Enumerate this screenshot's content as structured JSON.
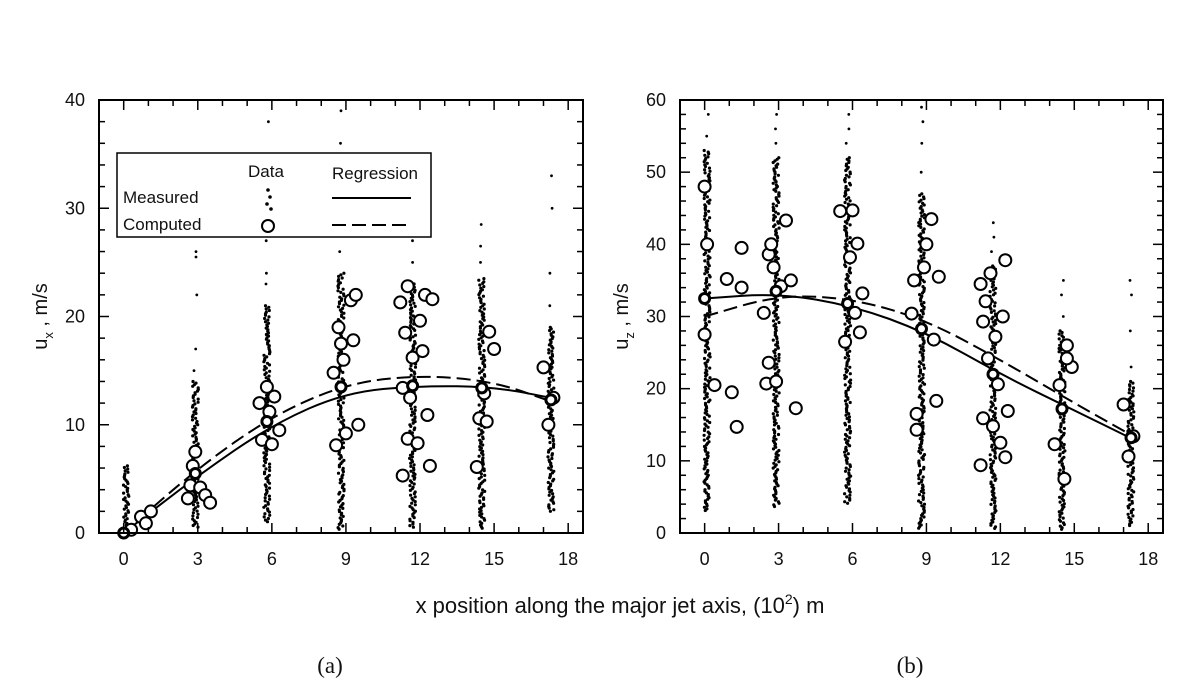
{
  "figure": {
    "xlabel_main": "x position along the major jet axis, (10",
    "xlabel_sup": "2",
    "xlabel_tail": ") m"
  },
  "chart_data": [
    {
      "type": "scatter",
      "panel_label": "(a)",
      "ylabel_main": "u",
      "ylabel_sub": "x",
      "ylabel_unit": " , m/s",
      "xlim": [
        -1,
        18.6
      ],
      "ylim": [
        0,
        40
      ],
      "xticks": [
        0,
        3,
        6,
        9,
        12,
        15,
        18
      ],
      "yticks": [
        0,
        10,
        20,
        30,
        40
      ],
      "legend": {
        "position": "top-left",
        "col_data": "Data",
        "col_regression": "Regression",
        "row_measured": "Measured",
        "row_computed": "Computed"
      },
      "measured_spread": [
        {
          "x": 0.1,
          "lo": 0,
          "hi": 6.2,
          "outliers": []
        },
        {
          "x": 2.9,
          "lo": 0.5,
          "hi": 14,
          "outliers": [
            15,
            17,
            22,
            25.5,
            26
          ]
        },
        {
          "x": 5.8,
          "lo": 1,
          "hi": 21,
          "outliers": [
            23,
            24,
            27,
            30,
            35,
            38
          ]
        },
        {
          "x": 8.8,
          "lo": 0.3,
          "hi": 24,
          "outliers": [
            26,
            29,
            33,
            36,
            39
          ]
        },
        {
          "x": 11.7,
          "lo": 0.5,
          "hi": 23,
          "outliers": [
            25,
            27,
            30,
            33,
            35
          ]
        },
        {
          "x": 14.5,
          "lo": 0.3,
          "hi": 23.5,
          "outliers": [
            25,
            26.5,
            28.5
          ]
        },
        {
          "x": 17.3,
          "lo": 2,
          "hi": 19,
          "outliers": [
            21,
            24,
            30,
            33
          ]
        }
      ],
      "computed_data": [
        {
          "x": 0.3,
          "y": 0.3
        },
        {
          "x": 0.7,
          "y": 1.5
        },
        {
          "x": 0.9,
          "y": 0.9
        },
        {
          "x": 1.1,
          "y": 2.0
        },
        {
          "x": 2.6,
          "y": 3.2
        },
        {
          "x": 2.7,
          "y": 4.4
        },
        {
          "x": 2.8,
          "y": 6.2
        },
        {
          "x": 2.9,
          "y": 7.5
        },
        {
          "x": 3.1,
          "y": 4.2
        },
        {
          "x": 3.3,
          "y": 3.5
        },
        {
          "x": 3.5,
          "y": 2.8
        },
        {
          "x": 5.5,
          "y": 12.0
        },
        {
          "x": 5.6,
          "y": 8.6
        },
        {
          "x": 5.8,
          "y": 13.5
        },
        {
          "x": 5.9,
          "y": 11.2
        },
        {
          "x": 6.0,
          "y": 8.2
        },
        {
          "x": 6.1,
          "y": 12.6
        },
        {
          "x": 6.3,
          "y": 9.5
        },
        {
          "x": 8.5,
          "y": 14.8
        },
        {
          "x": 8.6,
          "y": 8.1
        },
        {
          "x": 8.7,
          "y": 19.0
        },
        {
          "x": 8.8,
          "y": 17.5
        },
        {
          "x": 8.9,
          "y": 16.0
        },
        {
          "x": 9.0,
          "y": 9.2
        },
        {
          "x": 9.2,
          "y": 21.5
        },
        {
          "x": 9.4,
          "y": 22.0
        },
        {
          "x": 9.5,
          "y": 10.0
        },
        {
          "x": 9.3,
          "y": 17.8
        },
        {
          "x": 11.2,
          "y": 21.3
        },
        {
          "x": 11.3,
          "y": 5.3
        },
        {
          "x": 11.4,
          "y": 18.5
        },
        {
          "x": 11.5,
          "y": 22.8
        },
        {
          "x": 11.5,
          "y": 8.7
        },
        {
          "x": 11.6,
          "y": 12.5
        },
        {
          "x": 11.7,
          "y": 16.2
        },
        {
          "x": 11.9,
          "y": 8.3
        },
        {
          "x": 12.0,
          "y": 19.6
        },
        {
          "x": 12.1,
          "y": 16.8
        },
        {
          "x": 12.2,
          "y": 22.0
        },
        {
          "x": 12.3,
          "y": 10.9
        },
        {
          "x": 12.4,
          "y": 6.2
        },
        {
          "x": 12.5,
          "y": 21.6
        },
        {
          "x": 11.3,
          "y": 13.4
        },
        {
          "x": 14.3,
          "y": 6.1
        },
        {
          "x": 14.4,
          "y": 10.6
        },
        {
          "x": 14.6,
          "y": 12.9
        },
        {
          "x": 14.8,
          "y": 18.6
        },
        {
          "x": 15.0,
          "y": 17.0
        },
        {
          "x": 14.7,
          "y": 10.3
        },
        {
          "x": 17.0,
          "y": 15.3
        },
        {
          "x": 17.2,
          "y": 10.0
        },
        {
          "x": 17.4,
          "y": 12.5
        }
      ],
      "regression_points": [
        {
          "x": 0,
          "y": 0
        },
        {
          "x": 2.9,
          "y": 5.5
        },
        {
          "x": 5.8,
          "y": 10.3
        },
        {
          "x": 8.8,
          "y": 13.5
        },
        {
          "x": 11.7,
          "y": 13.6
        },
        {
          "x": 14.5,
          "y": 13.4
        },
        {
          "x": 17.3,
          "y": 12.3
        }
      ],
      "series": [
        {
          "name": "Measured",
          "style": "solid",
          "x": [
            0,
            3,
            6,
            9,
            12,
            15,
            17.5
          ],
          "y": [
            0,
            5.3,
            10.0,
            13.0,
            13.6,
            13.5,
            12.4
          ]
        },
        {
          "name": "Computed",
          "style": "dashed",
          "x": [
            0,
            3,
            6,
            9,
            12,
            15,
            17.5
          ],
          "y": [
            0,
            6.0,
            10.8,
            13.8,
            14.6,
            14.0,
            12.0
          ]
        }
      ]
    },
    {
      "type": "scatter",
      "panel_label": "(b)",
      "ylabel_main": "u",
      "ylabel_sub": "z",
      "ylabel_unit": " , m/s",
      "xlim": [
        -1,
        18.6
      ],
      "ylim": [
        0,
        60
      ],
      "xticks": [
        0,
        3,
        6,
        9,
        12,
        15,
        18
      ],
      "yticks": [
        0,
        10,
        20,
        30,
        40,
        50,
        60
      ],
      "measured_spread": [
        {
          "x": 0.1,
          "lo": 3,
          "hi": 53,
          "outliers": [
            55,
            58
          ]
        },
        {
          "x": 2.9,
          "lo": 3.5,
          "hi": 52,
          "outliers": [
            54,
            56,
            58
          ]
        },
        {
          "x": 5.8,
          "lo": 4,
          "hi": 52,
          "outliers": [
            54,
            56,
            58
          ]
        },
        {
          "x": 8.8,
          "lo": 0.5,
          "hi": 47,
          "outliers": [
            50,
            54,
            57,
            59
          ]
        },
        {
          "x": 11.7,
          "lo": 0.5,
          "hi": 37,
          "outliers": [
            39,
            41,
            43
          ]
        },
        {
          "x": 14.5,
          "lo": 0.5,
          "hi": 28,
          "outliers": [
            30,
            33,
            35
          ]
        },
        {
          "x": 17.3,
          "lo": 1,
          "hi": 21,
          "outliers": [
            23,
            28,
            33,
            35
          ]
        }
      ],
      "computed_data": [
        {
          "x": 0.0,
          "y": 48.0
        },
        {
          "x": 0.1,
          "y": 40.0
        },
        {
          "x": 0.0,
          "y": 27.5
        },
        {
          "x": 0.4,
          "y": 20.5
        },
        {
          "x": 0.9,
          "y": 35.2
        },
        {
          "x": 1.1,
          "y": 19.5
        },
        {
          "x": 1.3,
          "y": 14.7
        },
        {
          "x": 1.5,
          "y": 39.5
        },
        {
          "x": 1.5,
          "y": 34.0
        },
        {
          "x": 2.4,
          "y": 30.5
        },
        {
          "x": 2.5,
          "y": 20.7
        },
        {
          "x": 2.6,
          "y": 23.6
        },
        {
          "x": 2.6,
          "y": 38.6
        },
        {
          "x": 2.7,
          "y": 40.0
        },
        {
          "x": 2.8,
          "y": 36.8
        },
        {
          "x": 2.9,
          "y": 21.0
        },
        {
          "x": 3.1,
          "y": 34.2
        },
        {
          "x": 3.3,
          "y": 43.3
        },
        {
          "x": 3.5,
          "y": 35.0
        },
        {
          "x": 3.7,
          "y": 17.3
        },
        {
          "x": 5.5,
          "y": 44.6
        },
        {
          "x": 5.7,
          "y": 26.5
        },
        {
          "x": 5.9,
          "y": 38.2
        },
        {
          "x": 6.0,
          "y": 44.7
        },
        {
          "x": 6.1,
          "y": 30.5
        },
        {
          "x": 6.2,
          "y": 40.1
        },
        {
          "x": 6.3,
          "y": 27.8
        },
        {
          "x": 6.4,
          "y": 33.2
        },
        {
          "x": 8.4,
          "y": 30.4
        },
        {
          "x": 8.5,
          "y": 35.0
        },
        {
          "x": 8.6,
          "y": 16.5
        },
        {
          "x": 8.6,
          "y": 14.3
        },
        {
          "x": 8.9,
          "y": 36.8
        },
        {
          "x": 9.2,
          "y": 43.5
        },
        {
          "x": 9.3,
          "y": 26.8
        },
        {
          "x": 9.4,
          "y": 18.3
        },
        {
          "x": 9.5,
          "y": 35.5
        },
        {
          "x": 9.0,
          "y": 40.0
        },
        {
          "x": 11.2,
          "y": 34.5
        },
        {
          "x": 11.2,
          "y": 9.4
        },
        {
          "x": 11.3,
          "y": 15.9
        },
        {
          "x": 11.3,
          "y": 29.3
        },
        {
          "x": 11.4,
          "y": 32.1
        },
        {
          "x": 11.5,
          "y": 24.2
        },
        {
          "x": 11.6,
          "y": 36.0
        },
        {
          "x": 11.7,
          "y": 14.8
        },
        {
          "x": 11.8,
          "y": 27.2
        },
        {
          "x": 11.9,
          "y": 20.6
        },
        {
          "x": 12.0,
          "y": 12.5
        },
        {
          "x": 12.1,
          "y": 30.0
        },
        {
          "x": 12.2,
          "y": 37.8
        },
        {
          "x": 12.2,
          "y": 10.5
        },
        {
          "x": 12.3,
          "y": 16.9
        },
        {
          "x": 14.2,
          "y": 12.3
        },
        {
          "x": 14.4,
          "y": 20.5
        },
        {
          "x": 14.6,
          "y": 7.5
        },
        {
          "x": 14.7,
          "y": 26.0
        },
        {
          "x": 14.9,
          "y": 23.0
        },
        {
          "x": 14.7,
          "y": 24.2
        },
        {
          "x": 17.0,
          "y": 17.8
        },
        {
          "x": 17.2,
          "y": 10.6
        },
        {
          "x": 17.4,
          "y": 13.4
        }
      ],
      "regression_points": [
        {
          "x": 0,
          "y": 32.5
        },
        {
          "x": 2.9,
          "y": 33.5
        },
        {
          "x": 5.8,
          "y": 31.8
        },
        {
          "x": 8.8,
          "y": 28.3
        },
        {
          "x": 11.7,
          "y": 22.0
        },
        {
          "x": 14.5,
          "y": 17.2
        },
        {
          "x": 17.3,
          "y": 13.2
        }
      ],
      "series": [
        {
          "name": "Measured",
          "style": "solid",
          "x": [
            0,
            3,
            6,
            9,
            12,
            15,
            17.5
          ],
          "y": [
            32.5,
            33.2,
            31.5,
            27.8,
            22.0,
            17.0,
            12.8
          ]
        },
        {
          "name": "Computed",
          "style": "dashed",
          "x": [
            0,
            3,
            6,
            9,
            12,
            15,
            17.5
          ],
          "y": [
            30.0,
            33.0,
            32.5,
            29.5,
            24.0,
            18.0,
            13.2
          ]
        }
      ]
    }
  ]
}
